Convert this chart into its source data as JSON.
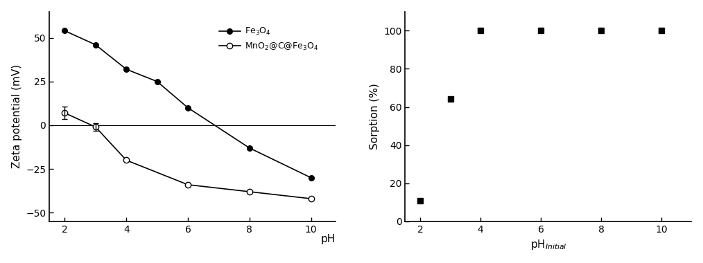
{
  "left": {
    "fe3o4_x": [
      2,
      3,
      4,
      5,
      6,
      8,
      10
    ],
    "fe3o4_y": [
      54,
      46,
      32,
      25,
      10,
      -13,
      -30
    ],
    "mno2_x": [
      2,
      3,
      4,
      6,
      8,
      10
    ],
    "mno2_y": [
      7,
      -1,
      -20,
      -34,
      -38,
      -42
    ],
    "mno2_yerr_vals": [
      3.5,
      2.0
    ],
    "ylabel": "Zeta potential (mV)",
    "ylim": [
      -55,
      65
    ],
    "yticks": [
      -50,
      -25,
      0,
      25,
      50
    ],
    "xticks": [
      2,
      4,
      6,
      8,
      10
    ],
    "xlim": [
      1.5,
      10.8
    ],
    "legend_fe3o4": "Fe$_3$O$_4$",
    "legend_mno2": "MnO$_2$@C@Fe$_3$O$_4$"
  },
  "right": {
    "x": [
      2,
      3,
      4,
      6,
      8,
      10
    ],
    "y": [
      11,
      64,
      100,
      100,
      100,
      100
    ],
    "xlabel": "pH$_{Initial}$",
    "ylabel": "Sorption (%)",
    "xlim": [
      1.5,
      11
    ],
    "ylim": [
      0,
      110
    ],
    "yticks": [
      0,
      20,
      40,
      60,
      80,
      100
    ],
    "xticks": [
      2,
      4,
      6,
      8,
      10
    ]
  }
}
